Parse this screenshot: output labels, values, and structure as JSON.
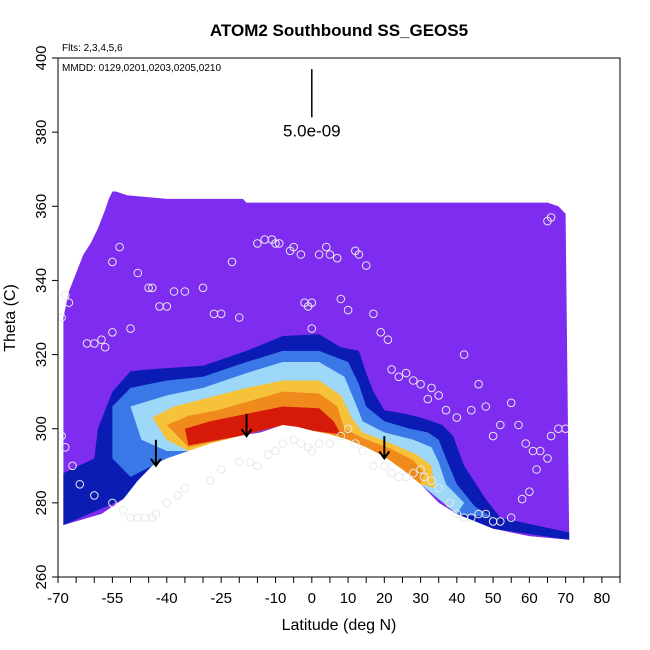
{
  "chart_data": {
    "type": "heatmap",
    "title": "ATOM2 Southbound SS_GEOS5",
    "notes": {
      "flights": "Flts: 2,3,4,5,6",
      "dates": "MMDD: 0129,0201,0203,0205,0210"
    },
    "xlabel": "Latitude (deg N)",
    "ylabel": "Theta (C)",
    "xlim": [
      -70,
      85
    ],
    "ylim": [
      260,
      400
    ],
    "xticks": [
      -70,
      -55,
      -40,
      -25,
      -10,
      0,
      10,
      20,
      30,
      40,
      50,
      60,
      70,
      80
    ],
    "yticks": [
      260,
      280,
      300,
      320,
      340,
      360,
      380,
      400
    ],
    "grid": false,
    "scale_annotation": {
      "label": "5.0e-09",
      "x": 0,
      "y_top": 397,
      "y_bottom": 384
    },
    "colors": {
      "background_field": "#7d2cf0",
      "dark_blue": "#0b1cb4",
      "blue": "#3a78e8",
      "light_blue": "#9ed8f8",
      "white": "#ffffff",
      "yellow": "#f6c23a",
      "orange": "#f08a1c",
      "red": "#d61a0a",
      "dark_red": "#b50800",
      "marker": "#e8e8e8"
    },
    "top_boundary": [
      [
        -68.5,
        330
      ],
      [
        -67,
        337
      ],
      [
        -65,
        342
      ],
      [
        -63,
        347
      ],
      [
        -61,
        350
      ],
      [
        -59,
        354
      ],
      [
        -57,
        359
      ],
      [
        -56,
        362
      ],
      [
        -55,
        364
      ],
      [
        -54,
        364
      ],
      [
        -51,
        363
      ],
      [
        -40,
        362
      ],
      [
        -19,
        362
      ],
      [
        -18,
        361
      ],
      [
        65,
        361
      ],
      [
        68,
        360
      ],
      [
        70,
        358
      ]
    ],
    "floor_boundary": [
      [
        -68.5,
        274
      ],
      [
        -58,
        277
      ],
      [
        -52,
        281
      ],
      [
        -48,
        286
      ],
      [
        -44,
        290
      ],
      [
        -40,
        292
      ],
      [
        -34,
        294
      ],
      [
        -28,
        296
      ],
      [
        -20,
        298
      ],
      [
        -14,
        299
      ],
      [
        -8,
        301
      ],
      [
        -4,
        300.5
      ],
      [
        0,
        299.5
      ],
      [
        5,
        298.5
      ],
      [
        10,
        297
      ],
      [
        15,
        295
      ],
      [
        20,
        292.5
      ],
      [
        25,
        289
      ],
      [
        30,
        285
      ],
      [
        35,
        280
      ],
      [
        40,
        277
      ],
      [
        45,
        275
      ],
      [
        50,
        273
      ],
      [
        60,
        271
      ],
      [
        71,
        270
      ]
    ],
    "concentration_bands": [
      {
        "name": "outer",
        "color": "dark_blue",
        "points": [
          [
            -59,
            300
          ],
          [
            -55,
            310
          ],
          [
            -50,
            315.5
          ],
          [
            -45,
            316
          ],
          [
            -30,
            317
          ],
          [
            -18,
            321
          ],
          [
            -8,
            325
          ],
          [
            2,
            325.5
          ],
          [
            8,
            322
          ],
          [
            13,
            321
          ],
          [
            15,
            315
          ],
          [
            17,
            310
          ],
          [
            20,
            305
          ],
          [
            26,
            304
          ],
          [
            30,
            303
          ],
          [
            33,
            302
          ],
          [
            36,
            301
          ],
          [
            39,
            298
          ],
          [
            42,
            290
          ],
          [
            48,
            281
          ],
          [
            52,
            276
          ],
          [
            71,
            272
          ],
          [
            71,
            270
          ],
          [
            50,
            273
          ],
          [
            40,
            277
          ],
          [
            30,
            285
          ],
          [
            20,
            292.5
          ],
          [
            10,
            297
          ],
          [
            0,
            299.5
          ],
          [
            -8,
            301
          ],
          [
            -20,
            298
          ],
          [
            -34,
            294
          ],
          [
            -44,
            290
          ],
          [
            -52,
            281
          ],
          [
            -68.5,
            274
          ],
          [
            -68.5,
            288
          ],
          [
            -60,
            292
          ]
        ]
      },
      {
        "name": "blue",
        "color": "blue",
        "points": [
          [
            -55,
            306
          ],
          [
            -50,
            311
          ],
          [
            -40,
            313
          ],
          [
            -30,
            314
          ],
          [
            -18,
            318
          ],
          [
            -8,
            321
          ],
          [
            2,
            321
          ],
          [
            10,
            318
          ],
          [
            13,
            312
          ],
          [
            15,
            306
          ],
          [
            20,
            302
          ],
          [
            27,
            300
          ],
          [
            32,
            299
          ],
          [
            35,
            297
          ],
          [
            37,
            292
          ],
          [
            40,
            285
          ],
          [
            45,
            279
          ],
          [
            50,
            276
          ],
          [
            40,
            277
          ],
          [
            30,
            285
          ],
          [
            20,
            292.5
          ],
          [
            10,
            297
          ],
          [
            0,
            299.5
          ],
          [
            -8,
            301
          ],
          [
            -20,
            298
          ],
          [
            -34,
            294
          ],
          [
            -44,
            290
          ],
          [
            -50,
            287
          ],
          [
            -55,
            292
          ]
        ]
      },
      {
        "name": "light",
        "color": "light_blue",
        "points": [
          [
            -50,
            306
          ],
          [
            -40,
            309
          ],
          [
            -30,
            311
          ],
          [
            -18,
            315
          ],
          [
            -8,
            318
          ],
          [
            2,
            318
          ],
          [
            9,
            314
          ],
          [
            12,
            307
          ],
          [
            14,
            302
          ],
          [
            20,
            299
          ],
          [
            28,
            297
          ],
          [
            33,
            295
          ],
          [
            35,
            291
          ],
          [
            37,
            285
          ],
          [
            42,
            280
          ],
          [
            40,
            277
          ],
          [
            30,
            285
          ],
          [
            20,
            292.5
          ],
          [
            10,
            297
          ],
          [
            0,
            299.5
          ],
          [
            -8,
            301
          ],
          [
            -20,
            298
          ],
          [
            -34,
            294
          ],
          [
            -40,
            294
          ],
          [
            -47,
            297
          ]
        ]
      },
      {
        "name": "yellow",
        "color": "yellow",
        "points": [
          [
            -44,
            303
          ],
          [
            -38,
            306
          ],
          [
            -30,
            308
          ],
          [
            -18,
            311
          ],
          [
            -8,
            313
          ],
          [
            2,
            313
          ],
          [
            8,
            309
          ],
          [
            11,
            303
          ],
          [
            14,
            299
          ],
          [
            22,
            296
          ],
          [
            29,
            293
          ],
          [
            33,
            290
          ],
          [
            34,
            284
          ],
          [
            30,
            285
          ],
          [
            20,
            292.5
          ],
          [
            10,
            297
          ],
          [
            0,
            299.5
          ],
          [
            -8,
            301
          ],
          [
            -20,
            298
          ],
          [
            -34,
            294
          ],
          [
            -40,
            297
          ]
        ]
      },
      {
        "name": "orange",
        "color": "orange",
        "points": [
          [
            -40,
            301
          ],
          [
            -34,
            303.5
          ],
          [
            -26,
            305
          ],
          [
            -17,
            307.5
          ],
          [
            -8,
            310
          ],
          [
            2,
            309.5
          ],
          [
            7,
            306
          ],
          [
            9,
            300
          ],
          [
            14,
            297.5
          ],
          [
            22,
            294.5
          ],
          [
            28,
            291.5
          ],
          [
            31,
            288
          ],
          [
            30,
            285
          ],
          [
            20,
            292.5
          ],
          [
            10,
            297
          ],
          [
            0,
            299.5
          ],
          [
            -8,
            301
          ],
          [
            -20,
            298
          ],
          [
            -34,
            295
          ]
        ]
      },
      {
        "name": "red",
        "color": "red",
        "points": [
          [
            -35,
            300
          ],
          [
            -28,
            302
          ],
          [
            -18,
            304
          ],
          [
            -8,
            306
          ],
          [
            2,
            305.5
          ],
          [
            6,
            302
          ],
          [
            8,
            298.5
          ],
          [
            0,
            299.5
          ],
          [
            -8,
            301
          ],
          [
            -20,
            298
          ],
          [
            -34,
            295.5
          ]
        ]
      }
    ],
    "arrows": [
      {
        "x": -43,
        "y_top": 297,
        "y_bottom": 290
      },
      {
        "x": -18,
        "y_top": 304,
        "y_bottom": 298
      },
      {
        "x": 20,
        "y_top": 298,
        "y_bottom": 292
      }
    ],
    "points": [
      [
        -69,
        330
      ],
      [
        -68,
        336
      ],
      [
        -67,
        334
      ],
      [
        -62,
        323
      ],
      [
        -60,
        323
      ],
      [
        -58,
        324
      ],
      [
        -57,
        322
      ],
      [
        -55,
        326
      ],
      [
        -55,
        345
      ],
      [
        -53,
        349
      ],
      [
        -50,
        327
      ],
      [
        -48,
        342
      ],
      [
        -45,
        338
      ],
      [
        -44,
        338
      ],
      [
        -42,
        333
      ],
      [
        -40,
        333
      ],
      [
        -38,
        337
      ],
      [
        -35,
        337
      ],
      [
        -30,
        338
      ],
      [
        -27,
        331
      ],
      [
        -25,
        331
      ],
      [
        -22,
        345
      ],
      [
        -20,
        330
      ],
      [
        -15,
        350
      ],
      [
        -13,
        351
      ],
      [
        -11,
        351
      ],
      [
        -10,
        350
      ],
      [
        -9,
        350
      ],
      [
        -6,
        348
      ],
      [
        -5,
        349
      ],
      [
        -3,
        347
      ],
      [
        -2,
        334
      ],
      [
        -1,
        333
      ],
      [
        0,
        334
      ],
      [
        0,
        327
      ],
      [
        2,
        347
      ],
      [
        4,
        349
      ],
      [
        5,
        347
      ],
      [
        7,
        346
      ],
      [
        8,
        335
      ],
      [
        10,
        332
      ],
      [
        12,
        348
      ],
      [
        13,
        347
      ],
      [
        15,
        344
      ],
      [
        17,
        331
      ],
      [
        19,
        326
      ],
      [
        21,
        324
      ],
      [
        22,
        316
      ],
      [
        24,
        314
      ],
      [
        26,
        315
      ],
      [
        28,
        313
      ],
      [
        30,
        312
      ],
      [
        32,
        308
      ],
      [
        33,
        311
      ],
      [
        35,
        309
      ],
      [
        37,
        305
      ],
      [
        40,
        303
      ],
      [
        42,
        320
      ],
      [
        44,
        305
      ],
      [
        46,
        312
      ],
      [
        48,
        306
      ],
      [
        50,
        298
      ],
      [
        52,
        301
      ],
      [
        55,
        307
      ],
      [
        57,
        301
      ],
      [
        59,
        296
      ],
      [
        61,
        294
      ],
      [
        63,
        294
      ],
      [
        65,
        356
      ],
      [
        66,
        357
      ],
      [
        -69,
        298
      ],
      [
        -68,
        295
      ],
      [
        -66,
        290
      ],
      [
        -64,
        285
      ],
      [
        -60,
        282
      ],
      [
        -55,
        280
      ],
      [
        -52,
        278
      ],
      [
        -50,
        276
      ],
      [
        -48,
        276
      ],
      [
        -46,
        276
      ],
      [
        -44,
        276
      ],
      [
        -43,
        277
      ],
      [
        -40,
        280
      ],
      [
        -37,
        282
      ],
      [
        -35,
        284
      ],
      [
        -28,
        286
      ],
      [
        -25,
        289
      ],
      [
        -20,
        291
      ],
      [
        -17,
        291
      ],
      [
        -15,
        290
      ],
      [
        -12,
        293
      ],
      [
        -10,
        294
      ],
      [
        -8,
        296
      ],
      [
        -5,
        297
      ],
      [
        -3,
        296
      ],
      [
        -1,
        295
      ],
      [
        0,
        294
      ],
      [
        2,
        296
      ],
      [
        5,
        296
      ],
      [
        8,
        298
      ],
      [
        10,
        300
      ],
      [
        12,
        296
      ],
      [
        14,
        294
      ],
      [
        17,
        290
      ],
      [
        20,
        290
      ],
      [
        22,
        288
      ],
      [
        24,
        287
      ],
      [
        26,
        287
      ],
      [
        28,
        288
      ],
      [
        30,
        289
      ],
      [
        31,
        287
      ],
      [
        33,
        286
      ],
      [
        35,
        284
      ],
      [
        38,
        280
      ],
      [
        40,
        277
      ],
      [
        42,
        276
      ],
      [
        44,
        276
      ],
      [
        46,
        277
      ],
      [
        48,
        277
      ],
      [
        50,
        275
      ],
      [
        52,
        275
      ],
      [
        55,
        276
      ],
      [
        58,
        281
      ],
      [
        60,
        283
      ],
      [
        62,
        289
      ],
      [
        65,
        292
      ],
      [
        66,
        298
      ],
      [
        68,
        300
      ],
      [
        70,
        300
      ]
    ]
  }
}
